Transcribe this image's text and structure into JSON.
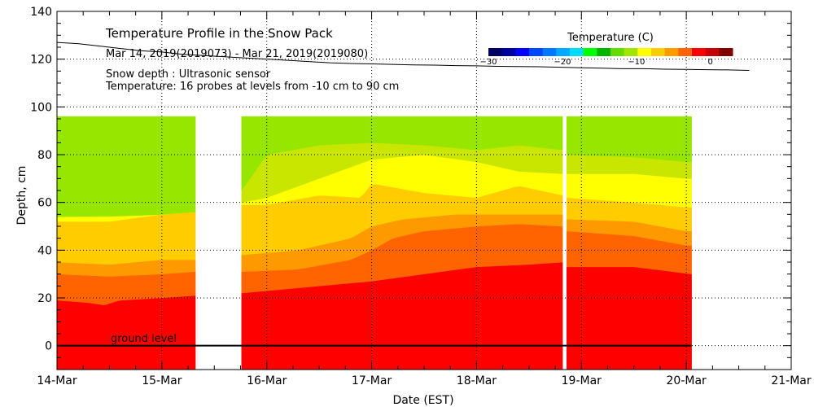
{
  "chart_data": {
    "type": "heatmap",
    "title": "Temperature Profile in the Snow Pack",
    "subtitle": "Mar 14, 2019(2019073) - Mar 21, 2019(2019080)",
    "notes": [
      "Snow depth : Ultrasonic sensor",
      "Temperature: 16 probes at levels from -10 cm to 90 cm"
    ],
    "xlabel": "Date (EST)",
    "ylabel": "Depth, cm",
    "xlim": [
      0,
      7
    ],
    "ylim": [
      -10,
      140
    ],
    "x_ticks": [
      {
        "v": 0,
        "label": "14-Mar"
      },
      {
        "v": 1,
        "label": "15-Mar"
      },
      {
        "v": 2,
        "label": "16-Mar"
      },
      {
        "v": 3,
        "label": "17-Mar"
      },
      {
        "v": 4,
        "label": "18-Mar"
      },
      {
        "v": 5,
        "label": "19-Mar"
      },
      {
        "v": 6,
        "label": "20-Mar"
      },
      {
        "v": 7,
        "label": "21-Mar"
      }
    ],
    "y_ticks": [
      {
        "v": 0,
        "label": "0"
      },
      {
        "v": 20,
        "label": "20"
      },
      {
        "v": 40,
        "label": "40"
      },
      {
        "v": 60,
        "label": "60"
      },
      {
        "v": 80,
        "label": "80"
      },
      {
        "v": 100,
        "label": "100"
      },
      {
        "v": 120,
        "label": "120"
      },
      {
        "v": 140,
        "label": "140"
      }
    ],
    "ground_label": "ground level",
    "data_top_cm": 96,
    "data_segments": [
      [
        0,
        1.32
      ],
      [
        1.76,
        4.82
      ],
      [
        4.86,
        6.05
      ]
    ],
    "bands": [
      {
        "name": "red",
        "color": "#ff0000",
        "boundary": [
          [
            0,
            19
          ],
          [
            0.3,
            18
          ],
          [
            0.45,
            17
          ],
          [
            0.6,
            19
          ],
          [
            1,
            20
          ],
          [
            1.32,
            21
          ],
          [
            1.76,
            22
          ],
          [
            2.5,
            25
          ],
          [
            3,
            27
          ],
          [
            3.5,
            30
          ],
          [
            4,
            33
          ],
          [
            4.5,
            34
          ],
          [
            4.82,
            35
          ],
          [
            4.86,
            33
          ],
          [
            5.5,
            33
          ],
          [
            6.05,
            30
          ]
        ]
      },
      {
        "name": "orange-red",
        "color": "#ff6400",
        "boundary": [
          [
            0,
            30
          ],
          [
            0.5,
            29
          ],
          [
            1,
            30
          ],
          [
            1.32,
            31
          ],
          [
            1.76,
            31
          ],
          [
            2.3,
            32
          ],
          [
            2.8,
            36
          ],
          [
            3,
            40
          ],
          [
            3.2,
            45
          ],
          [
            3.5,
            48
          ],
          [
            4,
            50
          ],
          [
            4.4,
            51
          ],
          [
            4.82,
            50
          ],
          [
            4.86,
            48
          ],
          [
            5.5,
            46
          ],
          [
            6,
            42
          ],
          [
            6.05,
            42
          ]
        ]
      },
      {
        "name": "orange",
        "color": "#ff9900",
        "boundary": [
          [
            0,
            35
          ],
          [
            0.5,
            34
          ],
          [
            1,
            36
          ],
          [
            1.32,
            36
          ],
          [
            1.76,
            38
          ],
          [
            2.3,
            40
          ],
          [
            2.8,
            45
          ],
          [
            3,
            50
          ],
          [
            3.3,
            53
          ],
          [
            3.8,
            55
          ],
          [
            4.4,
            55
          ],
          [
            4.82,
            55
          ],
          [
            4.86,
            53
          ],
          [
            5.5,
            52
          ],
          [
            6,
            48
          ],
          [
            6.05,
            48
          ]
        ]
      },
      {
        "name": "amber",
        "color": "#ffcc00",
        "boundary": [
          [
            0,
            52
          ],
          [
            0.5,
            52
          ],
          [
            1,
            55
          ],
          [
            1.32,
            56
          ],
          [
            1.76,
            59
          ],
          [
            2,
            59
          ],
          [
            2.5,
            63
          ],
          [
            2.9,
            62
          ],
          [
            3,
            68
          ],
          [
            3.5,
            64
          ],
          [
            4,
            62
          ],
          [
            4.4,
            67
          ],
          [
            4.82,
            63
          ],
          [
            4.86,
            62
          ],
          [
            5.5,
            60
          ],
          [
            6,
            58
          ],
          [
            6.05,
            58
          ]
        ]
      },
      {
        "name": "yellow",
        "color": "#ffff00",
        "boundary": [
          [
            0,
            54
          ],
          [
            0.5,
            54
          ],
          [
            1,
            55
          ],
          [
            1.32,
            56
          ],
          [
            1.76,
            60
          ],
          [
            2,
            62
          ],
          [
            2.5,
            70
          ],
          [
            3,
            78
          ],
          [
            3.5,
            80
          ],
          [
            4,
            77
          ],
          [
            4.4,
            73
          ],
          [
            4.82,
            72
          ],
          [
            4.86,
            72
          ],
          [
            5.5,
            72
          ],
          [
            6,
            70
          ],
          [
            6.05,
            70
          ]
        ]
      },
      {
        "name": "yellow-green",
        "color": "#c8e600",
        "boundary": [
          [
            0,
            54
          ],
          [
            1.32,
            55
          ],
          [
            1.76,
            65
          ],
          [
            2,
            80
          ],
          [
            2.5,
            84
          ],
          [
            3,
            85
          ],
          [
            3.5,
            84
          ],
          [
            4,
            82
          ],
          [
            4.4,
            84
          ],
          [
            4.82,
            82
          ],
          [
            4.86,
            80
          ],
          [
            5.5,
            79
          ],
          [
            6,
            77
          ],
          [
            6.05,
            77
          ]
        ]
      },
      {
        "name": "light-green",
        "color": "#96e600",
        "boundary": [
          [
            0,
            96
          ],
          [
            6.05,
            96
          ]
        ]
      }
    ],
    "snow_depth": {
      "x": [
        0,
        0.2,
        0.4,
        0.6,
        0.8,
        1.0,
        1.2,
        1.4,
        1.6,
        1.8,
        2.0,
        2.2,
        2.4,
        2.6,
        2.8,
        3.0,
        3.2,
        3.4,
        3.6,
        3.8,
        4.0,
        4.2,
        4.4,
        4.6,
        4.8,
        5.0,
        5.2,
        5.4,
        5.6,
        5.8,
        6.0,
        6.2,
        6.4,
        6.6
      ],
      "y": [
        127,
        126.5,
        125.5,
        124.5,
        123.5,
        123,
        122,
        121.5,
        121,
        120.5,
        120,
        119.5,
        119,
        118.5,
        118.2,
        118,
        117.8,
        117.6,
        117.5,
        117.3,
        117.2,
        117,
        116.9,
        116.8,
        116.6,
        116.4,
        116.2,
        116,
        116,
        115.8,
        115.7,
        115.6,
        115.5,
        115.3
      ]
    },
    "colorbar": {
      "title": "Temperature (C)",
      "range": [
        -30,
        3
      ],
      "ticks": [
        {
          "v": -30,
          "label": "−30"
        },
        {
          "v": -20,
          "label": "−20"
        },
        {
          "v": -10,
          "label": "−10"
        },
        {
          "v": 0,
          "label": "0"
        }
      ],
      "colors": [
        "#000064",
        "#0000a0",
        "#0000ff",
        "#0046ff",
        "#0078ff",
        "#00aaff",
        "#00dcff",
        "#00ff00",
        "#00b400",
        "#64dc00",
        "#a0e600",
        "#ffff00",
        "#ffcc00",
        "#ff9900",
        "#ff6400",
        "#ff0000",
        "#c80000",
        "#800000"
      ]
    }
  }
}
